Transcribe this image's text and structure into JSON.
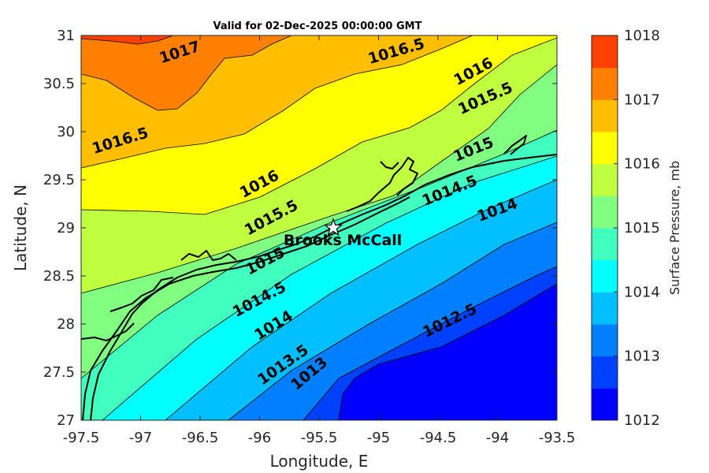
{
  "chart_data": {
    "type": "contour",
    "title": "Valid for 02-Dec-2025 00:00:00 GMT",
    "xlabel": "Longitude, E",
    "ylabel": "Latitude, N",
    "xlim": [
      -97.5,
      -93.5
    ],
    "ylim": [
      27,
      31
    ],
    "x_ticks": [
      "-97.5",
      "-97",
      "-96.5",
      "-96",
      "-95.5",
      "-95",
      "-94.5",
      "-94",
      "-93.5"
    ],
    "y_ticks": [
      "27",
      "27.5",
      "28",
      "28.5",
      "29",
      "29.5",
      "30",
      "30.5",
      "31"
    ],
    "colorbar": {
      "label": "Surface Pressure, mb",
      "range": [
        1012,
        1018
      ],
      "ticks": [
        "1012",
        "1013",
        "1014",
        "1015",
        "1016",
        "1017",
        "1018"
      ],
      "levels": [
        {
          "from": 1012.0,
          "to": 1012.5,
          "color": "#0000ff"
        },
        {
          "from": 1012.5,
          "to": 1013.0,
          "color": "#0040ff"
        },
        {
          "from": 1013.0,
          "to": 1013.5,
          "color": "#0080ff"
        },
        {
          "from": 1013.5,
          "to": 1014.0,
          "color": "#00bfff"
        },
        {
          "from": 1014.0,
          "to": 1014.5,
          "color": "#00ffff"
        },
        {
          "from": 1014.5,
          "to": 1015.0,
          "color": "#40ffbf"
        },
        {
          "from": 1015.0,
          "to": 1015.5,
          "color": "#80ff80"
        },
        {
          "from": 1015.5,
          "to": 1016.0,
          "color": "#bfff40"
        },
        {
          "from": 1016.0,
          "to": 1016.5,
          "color": "#ffff00"
        },
        {
          "from": 1016.5,
          "to": 1017.0,
          "color": "#ffbf00"
        },
        {
          "from": 1017.0,
          "to": 1017.5,
          "color": "#ff8000"
        },
        {
          "from": 1017.5,
          "to": 1018.0,
          "color": "#ff4000"
        }
      ]
    },
    "contour_labels": [
      {
        "text": "1017",
        "lon": -96.67,
        "lat": 30.82
      },
      {
        "text": "1016.5",
        "lon": -94.85,
        "lat": 30.83
      },
      {
        "text": "1016",
        "lon": -94.2,
        "lat": 30.62
      },
      {
        "text": "1015.5",
        "lon": -94.1,
        "lat": 30.34
      },
      {
        "text": "1016.5",
        "lon": -97.17,
        "lat": 29.9
      },
      {
        "text": "1015",
        "lon": -94.2,
        "lat": 29.81
      },
      {
        "text": "1016",
        "lon": -96.0,
        "lat": 29.45
      },
      {
        "text": "1014.5",
        "lon": -94.4,
        "lat": 29.38
      },
      {
        "text": "1015.5",
        "lon": -95.9,
        "lat": 29.1
      },
      {
        "text": "1014",
        "lon": -94.0,
        "lat": 29.18
      },
      {
        "text": "1015",
        "lon": -95.95,
        "lat": 28.65
      },
      {
        "text": "1014.5",
        "lon": -96.0,
        "lat": 28.25
      },
      {
        "text": "1014",
        "lon": -95.88,
        "lat": 27.98
      },
      {
        "text": "1012.5",
        "lon": -94.4,
        "lat": 28.03
      },
      {
        "text": "1013.5",
        "lon": -95.8,
        "lat": 27.57
      },
      {
        "text": "1013",
        "lon": -95.58,
        "lat": 27.48
      }
    ],
    "station": {
      "name": "Brooks McCall",
      "lon": -95.38,
      "lat": 29.0
    }
  }
}
